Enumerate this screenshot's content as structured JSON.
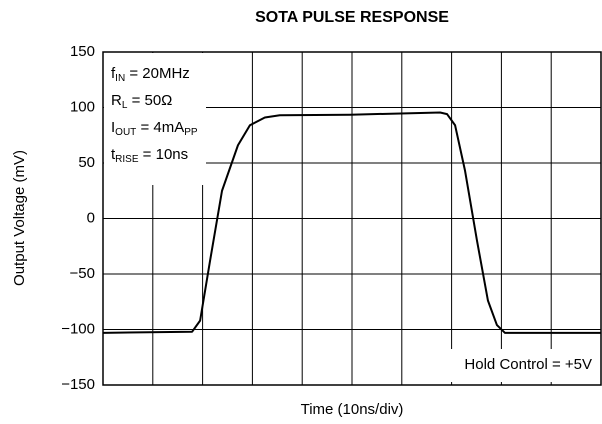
{
  "chart_data": {
    "type": "line",
    "title": "SOTA PULSE RESPONSE",
    "x_label": "Time (10ns/div)",
    "y_label": "Output Voltage (mV)",
    "annotation_lines": [
      [
        "f",
        "IN",
        " = 20MHz"
      ],
      [
        "R",
        "L",
        " = 50Ω"
      ],
      [
        "I",
        "OUT",
        " = 4mA",
        "PP"
      ],
      [
        "t",
        "RISE",
        " = 10ns"
      ]
    ],
    "note": "Hold Control = +5V",
    "x": [
      0,
      17.9,
      19.5,
      21.5,
      23.9,
      27.1,
      29.5,
      32.5,
      35.5,
      49.6,
      67.7,
      69.1,
      70.7,
      72.7,
      75.1,
      77.3,
      79.1,
      80.7,
      100
    ],
    "series": [
      {
        "color": "#000000",
        "values": [
          -103,
          -102,
          -92,
          -38,
          25,
          66,
          84,
          91,
          93,
          93.5,
          95.5,
          94,
          84,
          43,
          -20,
          -74,
          -96,
          -103,
          -103
        ]
      }
    ],
    "xlim": [
      0,
      100
    ],
    "xticks": [
      0,
      10,
      20,
      30,
      40,
      50,
      60,
      70,
      80,
      90,
      100
    ],
    "ylim": [
      -150,
      150
    ],
    "yticks": [
      {
        "value": -150,
        "label": "−150"
      },
      {
        "value": -100,
        "label": "−100"
      },
      {
        "value": -50,
        "label": "−50"
      },
      0,
      50,
      100,
      150
    ],
    "grid": true
  }
}
